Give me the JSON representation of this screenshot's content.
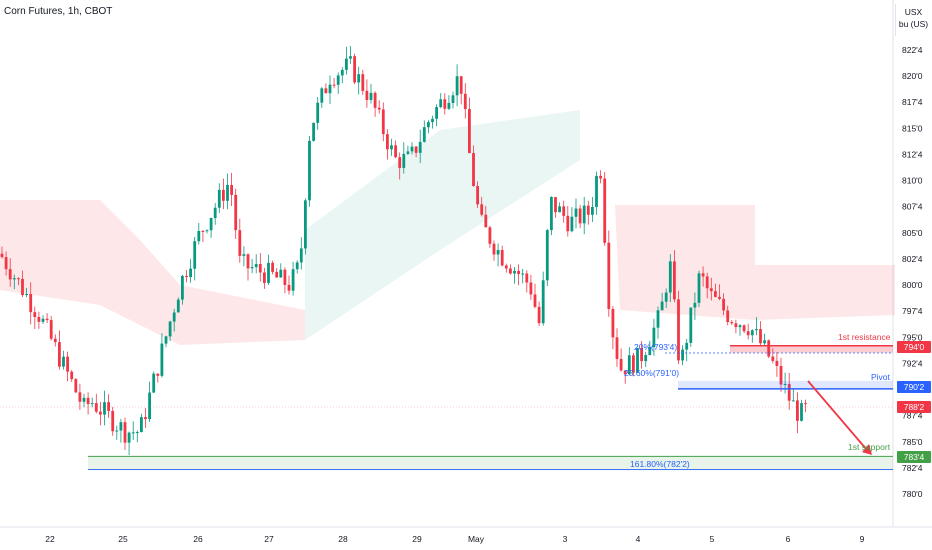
{
  "chart_title": "Corn Futures, 1h, CBOT",
  "axis_unit": {
    "currency": "USX",
    "unit": "bu (US)"
  },
  "colors": {
    "up": "#089981",
    "down": "#f23645",
    "pivot": "#2962ff",
    "support": "#43a047",
    "resistance": "#f23645"
  },
  "annotations": {
    "resistance": "1st resistance",
    "pivot": "Pivot",
    "support": "1st support",
    "fib_20": "20%(793'4)",
    "fib_23": "23.60%(791'0)",
    "fib_161": "161.80%(782'2)"
  },
  "price_tags": {
    "resistance": "794'0",
    "pivot": "790'2",
    "last": "788'2",
    "support": "783'4"
  },
  "chart_data": {
    "type": "candlestick",
    "title": "Corn Futures, 1h, CBOT",
    "y_ticks": [
      "822'4",
      "820'0",
      "817'4",
      "815'0",
      "812'4",
      "810'0",
      "807'4",
      "805'0",
      "802'4",
      "800'0",
      "797'4",
      "795'0",
      "792'4",
      "790'0",
      "787'4",
      "785'0",
      "782'4",
      "780'0"
    ],
    "x_ticks": [
      "22",
      "25",
      "26",
      "27",
      "28",
      "29",
      "May",
      "3",
      "4",
      "5",
      "6",
      "9"
    ],
    "levels": {
      "resistance": 794.0,
      "pivot": 790.25,
      "support": 783.5
    },
    "ylim": [
      778.0,
      823.5
    ]
  }
}
